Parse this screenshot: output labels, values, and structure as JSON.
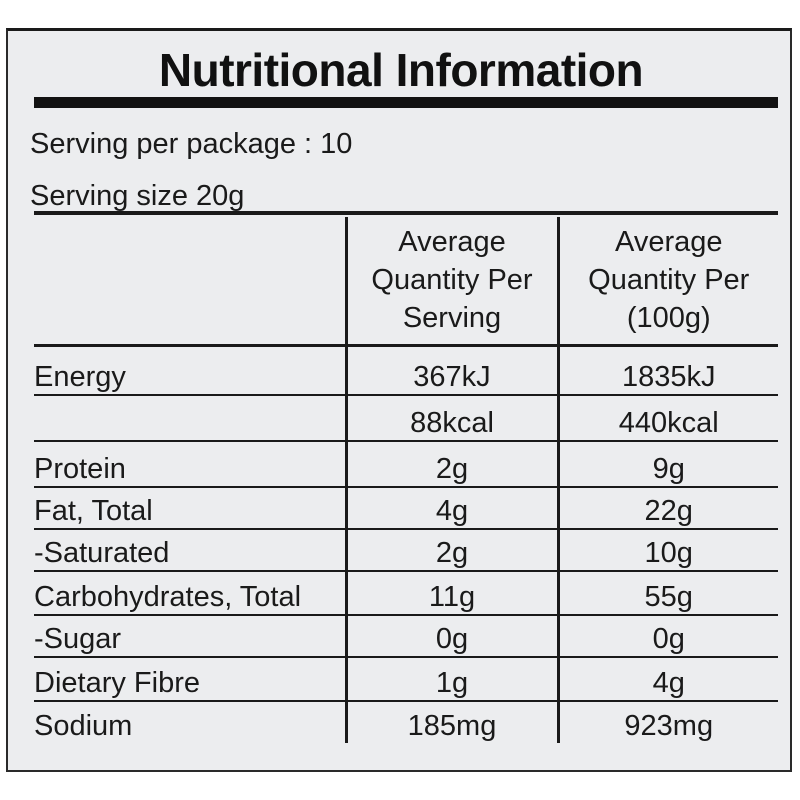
{
  "label": {
    "title": "Nutritional Information",
    "serving_per_package": "Serving per package : 10",
    "serving_size": "Serving size 20g"
  },
  "table": {
    "headers": {
      "nutrient": "",
      "per_serving": "Average Quantity Per Serving",
      "per_100g": "Average Quantity Per (100g)"
    },
    "rows": [
      {
        "name": "Energy",
        "per_serving": "367kJ",
        "per_100g": "1835kJ",
        "indent": false
      },
      {
        "name": "",
        "per_serving": "88kcal",
        "per_100g": "440kcal",
        "indent": false
      },
      {
        "name": "Protein",
        "per_serving": "2g",
        "per_100g": "9g",
        "indent": false
      },
      {
        "name": "Fat, Total",
        "per_serving": "4g",
        "per_100g": "22g",
        "indent": false
      },
      {
        "name": "-Saturated",
        "per_serving": "2g",
        "per_100g": "10g",
        "indent": true
      },
      {
        "name": "Carbohydrates, Total",
        "per_serving": "11g",
        "per_100g": "55g",
        "indent": false
      },
      {
        "name": "-Sugar",
        "per_serving": "0g",
        "per_100g": "0g",
        "indent": true
      },
      {
        "name": "Dietary Fibre",
        "per_serving": "1g",
        "per_100g": "4g",
        "indent": false
      },
      {
        "name": "Sodium",
        "per_serving": "185mg",
        "per_100g": "923mg",
        "indent": false
      }
    ]
  }
}
